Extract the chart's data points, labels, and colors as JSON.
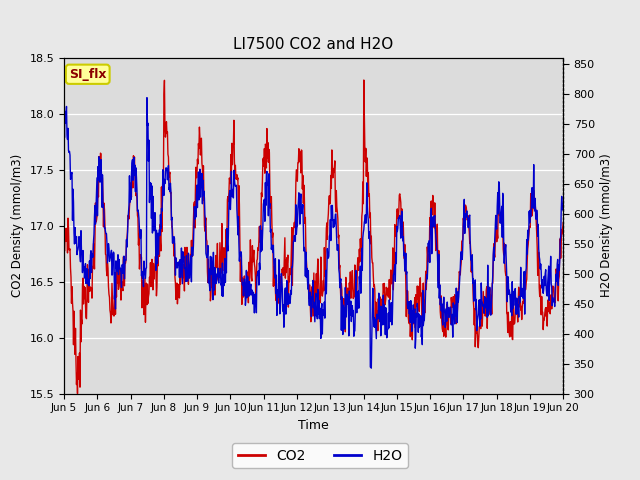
{
  "title": "LI7500 CO2 and H2O",
  "xlabel": "Time",
  "ylabel_left": "CO2 Density (mmol/m3)",
  "ylabel_right": "H2O Density (mmol/m3)",
  "ylim_left": [
    15.5,
    18.5
  ],
  "ylim_right": [
    300,
    860
  ],
  "xtick_labels": [
    "Jun 5",
    "Jun 6",
    "Jun 7",
    "Jun 8",
    "Jun 9",
    "Jun 10",
    "Jun 11",
    "Jun 12",
    "Jun 13",
    "Jun 14",
    "Jun 15",
    "Jun 16",
    "Jun 17",
    "Jun 18",
    "Jun 19",
    "Jun 20"
  ],
  "legend_co2": "CO2",
  "legend_h2o": "H2O",
  "co2_color": "#cc0000",
  "h2o_color": "#0000cc",
  "annotation_text": "SI_flx",
  "annotation_bg": "#ffff99",
  "annotation_border": "#cccc00",
  "bg_color": "#e8e8e8",
  "plot_bg": "#dcdcdc",
  "line_width": 1.0,
  "yticks_left": [
    15.5,
    16.0,
    16.5,
    17.0,
    17.5,
    18.0,
    18.5
  ],
  "yticks_right": [
    300,
    350,
    400,
    450,
    500,
    550,
    600,
    650,
    700,
    750,
    800,
    850
  ]
}
